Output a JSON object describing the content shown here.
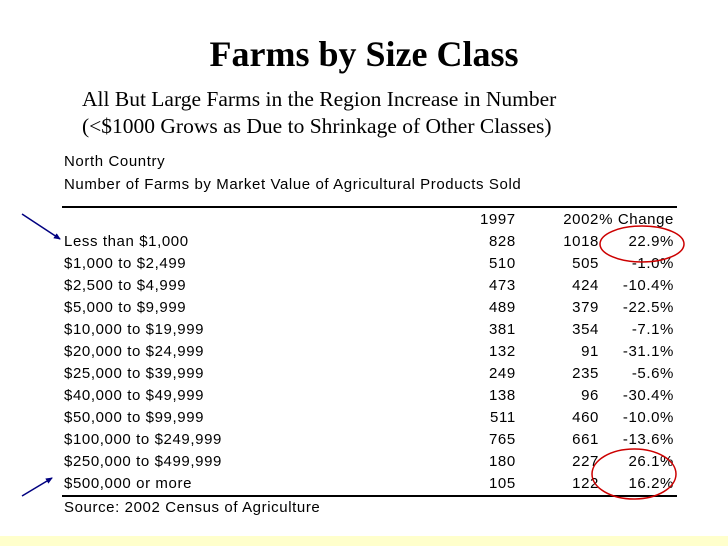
{
  "slide": {
    "title": "Farms by Size Class",
    "subtitle_line1": "All But Large Farms in the Region Increase in Number",
    "subtitle_line2": "(<$1000 Grows as Due to Shrinkage of Other Classes)"
  },
  "table": {
    "region": "North Country",
    "caption": "Number of Farms by Market Value of Agricultural Products Sold",
    "columns": [
      "",
      "1997",
      "2002",
      "% Change"
    ],
    "rows": [
      [
        "Less than $1,000",
        "828",
        "1018",
        "22.9%"
      ],
      [
        "$1,000 to $2,499",
        "510",
        "505",
        "-1.0%"
      ],
      [
        "$2,500 to $4,999",
        "473",
        "424",
        "-10.4%"
      ],
      [
        "$5,000 to $9,999",
        "489",
        "379",
        "-22.5%"
      ],
      [
        "$10,000 to $19,999",
        "381",
        "354",
        "-7.1%"
      ],
      [
        "$20,000 to $24,999",
        "132",
        "91",
        "-31.1%"
      ],
      [
        "$25,000 to $39,999",
        "249",
        "235",
        "-5.6%"
      ],
      [
        "$40,000 to $49,999",
        "138",
        "96",
        "-30.4%"
      ],
      [
        "$50,000 to $99,999",
        "511",
        "460",
        "-10.0%"
      ],
      [
        "$100,000 to $249,999",
        "765",
        "661",
        "-13.6%"
      ],
      [
        "$250,000 to $499,999",
        "180",
        "227",
        "26.1%"
      ],
      [
        "$500,000 or more",
        "105",
        "122",
        "16.2%"
      ]
    ],
    "source": "Source: 2002  Census of Agriculture"
  },
  "annotations": {
    "circle_color": "#cc0000",
    "arrow_color": "#000080",
    "strip_color": "#ffffcc"
  }
}
